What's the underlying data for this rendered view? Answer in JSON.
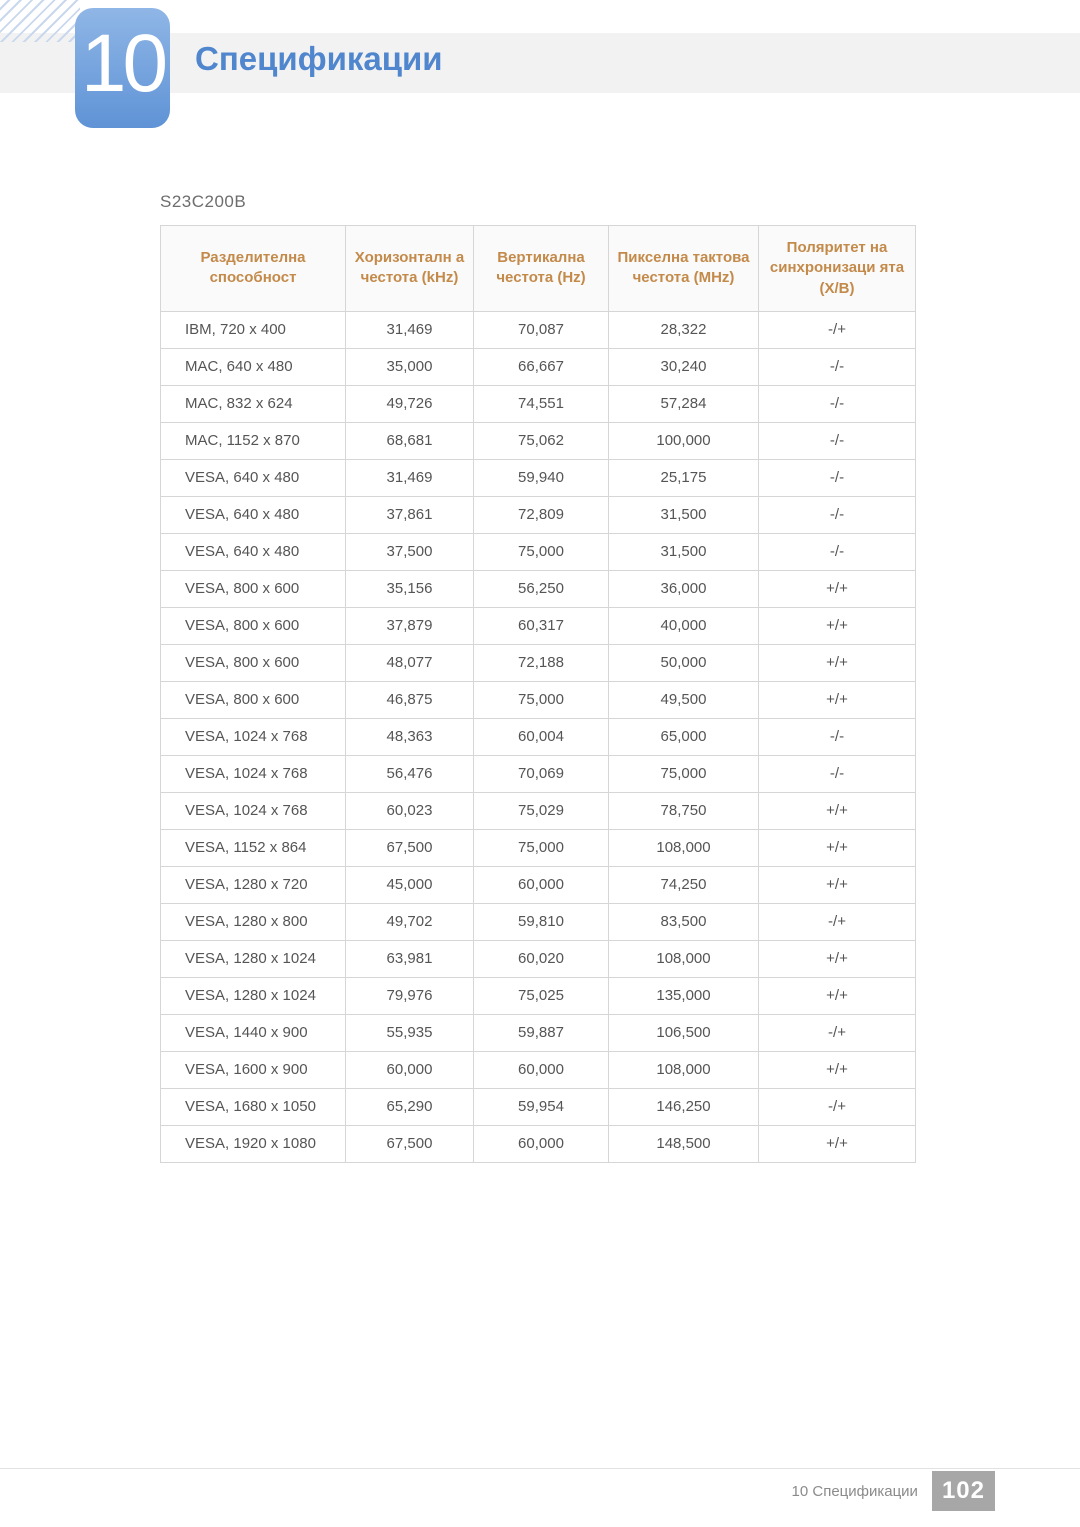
{
  "colors": {
    "accent_blue": "#4f86cd",
    "badge_gradient_top": "#8fb6e6",
    "badge_gradient_bottom": "#5f93d6",
    "header_bg": "#f2f2f2",
    "table_border": "#d6d6d6",
    "table_header_text": "#c38a4a",
    "body_text": "#555555",
    "footer_text": "#8b8b8b",
    "page_box_bg": "#a7a7a7"
  },
  "chapter": {
    "number": "10",
    "title": "Спецификации"
  },
  "model": "S23C200B",
  "table": {
    "columns": [
      "Разделителна способност",
      "Хоризонталн а честота (kHz)",
      "Вертикална честота (Hz)",
      "Пикселна тактова честота (MHz)",
      "Поляритет на синхронизаци ята (X/B)"
    ],
    "rows": [
      [
        "IBM, 720 x 400",
        "31,469",
        "70,087",
        "28,322",
        "-/+"
      ],
      [
        "MAC, 640 x 480",
        "35,000",
        "66,667",
        "30,240",
        "-/-"
      ],
      [
        "MAC, 832 x 624",
        "49,726",
        "74,551",
        "57,284",
        "-/-"
      ],
      [
        "MAC, 1152 x 870",
        "68,681",
        "75,062",
        "100,000",
        "-/-"
      ],
      [
        "VESA, 640 x 480",
        "31,469",
        "59,940",
        "25,175",
        "-/-"
      ],
      [
        "VESA, 640 x 480",
        "37,861",
        "72,809",
        "31,500",
        "-/-"
      ],
      [
        "VESA, 640 x 480",
        "37,500",
        "75,000",
        "31,500",
        "-/-"
      ],
      [
        "VESA, 800 x 600",
        "35,156",
        "56,250",
        "36,000",
        "+/+"
      ],
      [
        "VESA, 800 x 600",
        "37,879",
        "60,317",
        "40,000",
        "+/+"
      ],
      [
        "VESA, 800 x 600",
        "48,077",
        "72,188",
        "50,000",
        "+/+"
      ],
      [
        "VESA, 800 x 600",
        "46,875",
        "75,000",
        "49,500",
        "+/+"
      ],
      [
        "VESA, 1024 x 768",
        "48,363",
        "60,004",
        "65,000",
        "-/-"
      ],
      [
        "VESA, 1024 x 768",
        "56,476",
        "70,069",
        "75,000",
        "-/-"
      ],
      [
        "VESA, 1024 x 768",
        "60,023",
        "75,029",
        "78,750",
        "+/+"
      ],
      [
        "VESA, 1152 x 864",
        "67,500",
        "75,000",
        "108,000",
        "+/+"
      ],
      [
        "VESA, 1280 x 720",
        "45,000",
        "60,000",
        "74,250",
        "+/+"
      ],
      [
        "VESA, 1280 x 800",
        "49,702",
        "59,810",
        "83,500",
        "-/+"
      ],
      [
        "VESA, 1280 x 1024",
        "63,981",
        "60,020",
        "108,000",
        "+/+"
      ],
      [
        "VESA, 1280 x 1024",
        "79,976",
        "75,025",
        "135,000",
        "+/+"
      ],
      [
        "VESA, 1440 x 900",
        "55,935",
        "59,887",
        "106,500",
        "-/+"
      ],
      [
        "VESA, 1600 x 900",
        "60,000",
        "60,000",
        "108,000",
        "+/+"
      ],
      [
        "VESA, 1680 x 1050",
        "65,290",
        "59,954",
        "146,250",
        "-/+"
      ],
      [
        "VESA, 1920 x 1080",
        "67,500",
        "60,000",
        "148,500",
        "+/+"
      ]
    ]
  },
  "footer": {
    "text": "10 Спецификации",
    "page": "102"
  }
}
